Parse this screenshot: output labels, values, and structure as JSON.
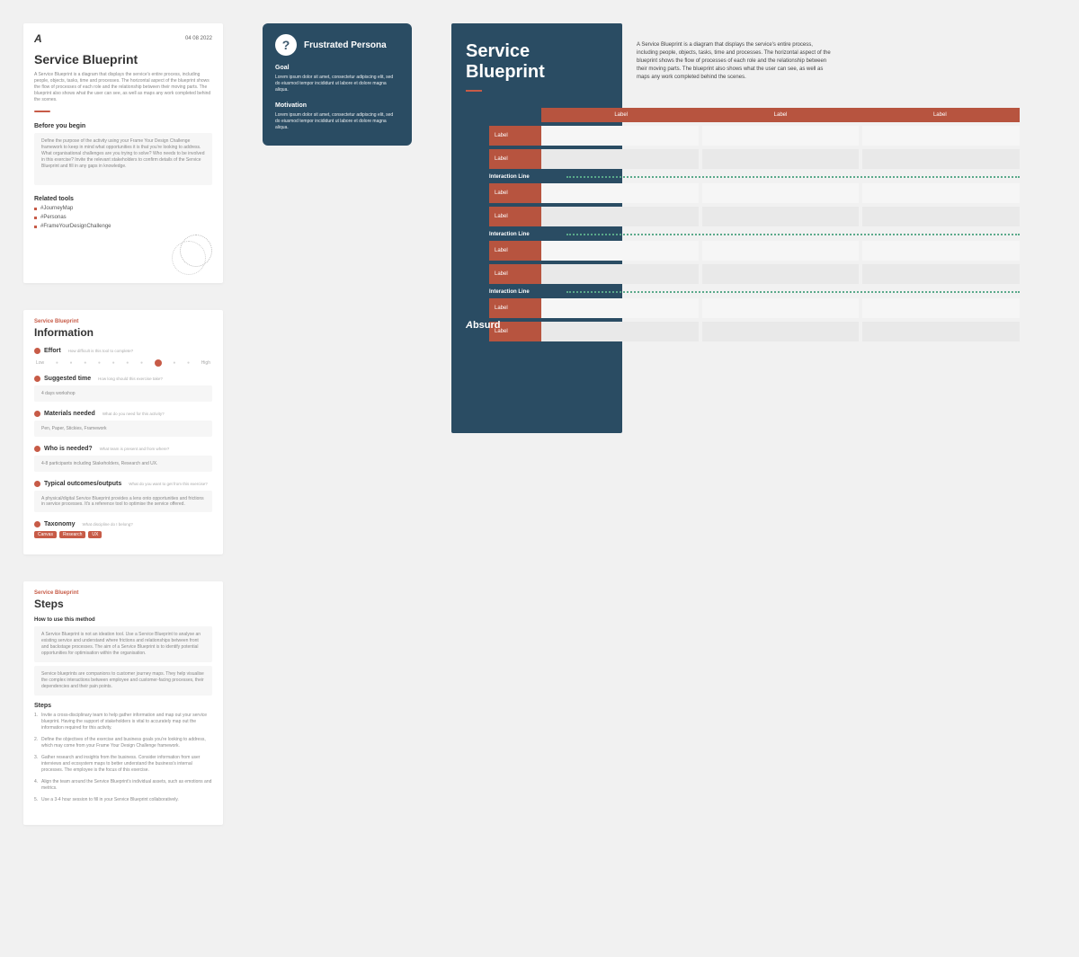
{
  "colors": {
    "bg": "#f1f1f1",
    "card": "#ffffff",
    "navy": "#2a4c63",
    "terracotta": "#b7543f",
    "green_dash": "#5aa98a",
    "grey_box": "#f6f6f6",
    "text_muted": "#888888"
  },
  "overview": {
    "logo": "A",
    "date": "04 08 2022",
    "title": "Service Blueprint",
    "description": "A Service Blueprint is a diagram that displays the service's entire process, including people, objects, tasks, time and processes. The horizontal aspect of the blueprint shows the flow of processes of each role and the relationship between their moving parts. The blueprint also shows what the user can see, as well as maps any work completed behind the scenes.",
    "before_heading": "Before you begin",
    "before_body": "Define the purpose of the activity using your Frame Your Design Challenge framework to keep in mind what opportunities it is that you're looking to address. What organisational challenges are you trying to solve? Who needs to be involved in this exercise? Invite the relevant stakeholders to confirm details of the Service Blueprint and fill in any gaps in knowledge.",
    "related_heading": "Related tools",
    "related": [
      "#JourneyMap",
      "#Personas",
      "#FrameYourDesignChallenge"
    ]
  },
  "info": {
    "eyebrow": "Service Blueprint",
    "title": "Information",
    "effort": {
      "label": "Effort",
      "hint": "How difficult is this tool to complete?",
      "low": "Low",
      "high": "High",
      "selected_index": 8,
      "count": 10
    },
    "time": {
      "label": "Suggested time",
      "hint": "How long should this exercise take?",
      "value": "4 days workshop"
    },
    "materials": {
      "label": "Materials needed",
      "hint": "What do you need for this activity?",
      "value": "Pen, Paper, Stickies, Framework"
    },
    "who": {
      "label": "Who is needed?",
      "hint": "What team is present and from where?",
      "value": "4-8 participants including Stakeholders, Research and UX."
    },
    "outcomes": {
      "label": "Typical outcomes/outputs",
      "hint": "What do you want to get from this exercise?",
      "value": "A physical/digital Service Blueprint provides a lens onto opportunities and frictions in service processes. It's a reference tool to optimise the service offered."
    },
    "taxonomy": {
      "label": "Taxonomy",
      "hint": "What discipline do I belong?",
      "tags": [
        "Canvas",
        "Research",
        "UX"
      ]
    }
  },
  "steps": {
    "eyebrow": "Service Blueprint",
    "title": "Steps",
    "how_heading": "How to use this method",
    "intro1": "A Service Blueprint is not an ideation tool. Use a Service Blueprint to analyse an existing service and understand where frictions and relationships between front and backstage processes. The aim of a Service Blueprint is to identify potential opportunities for optimisation within the organisation.",
    "intro2": "Service blueprints are companions to customer journey maps. They help visualise the complex interactions between employee and customer-facing processes, their dependencies and their pain points.",
    "steps_heading": "Steps",
    "items": [
      "Invite a cross-disciplinary team to help gather information and map out your service blueprint. Having the support of stakeholders is vital to accurately map out the information required for this activity.",
      "Define the objectives of the exercise and business goals you're looking to address, which may come from your Frame Your Design Challenge framework.",
      "Gather research and insights from the business. Consider information from user interviews and ecosystem maps to better understand the business's internal processes. The employee is the focus of this exercise.",
      "Align the team around the Service Blueprint's individual assets, such as emotions and metrics.",
      "Use a 3-4 hour session to fill in your Service Blueprint collaboratively."
    ]
  },
  "persona": {
    "bg": "#2a4c63",
    "avatar_glyph": "?",
    "title": "Frustrated Persona",
    "goal_h": "Goal",
    "goal_body": "Lorem ipsum dolor sit amet, consectetur adipiscing elit, sed do eiusmod tempor incididunt ut labore et dolore magna aliqua.",
    "motivation_h": "Motivation",
    "motivation_body": "Lorem ipsum dolor sit amet, consectetur adipiscing elit, sed do eiusmod tempor incididunt ut labore et dolore magna aliqua."
  },
  "poster": {
    "navy": "#2a4c63",
    "terracotta": "#b7543f",
    "title": "Service Blueprint",
    "desc": "A Service Blueprint is a diagram that displays the service's entire process, including people, objects, tasks, time and processes. The horizontal aspect of the blueprint shows the flow of processes of each role and the relationship between their moving parts. The blueprint also shows what the user can see, as well as maps any work completed behind the scenes.",
    "header_labels": [
      "Label",
      "Label",
      "Label"
    ],
    "row_label": "Label",
    "interaction_label": "Interaction Line",
    "groups": 4,
    "rows_per_group": 2,
    "logo": "Absurd"
  }
}
